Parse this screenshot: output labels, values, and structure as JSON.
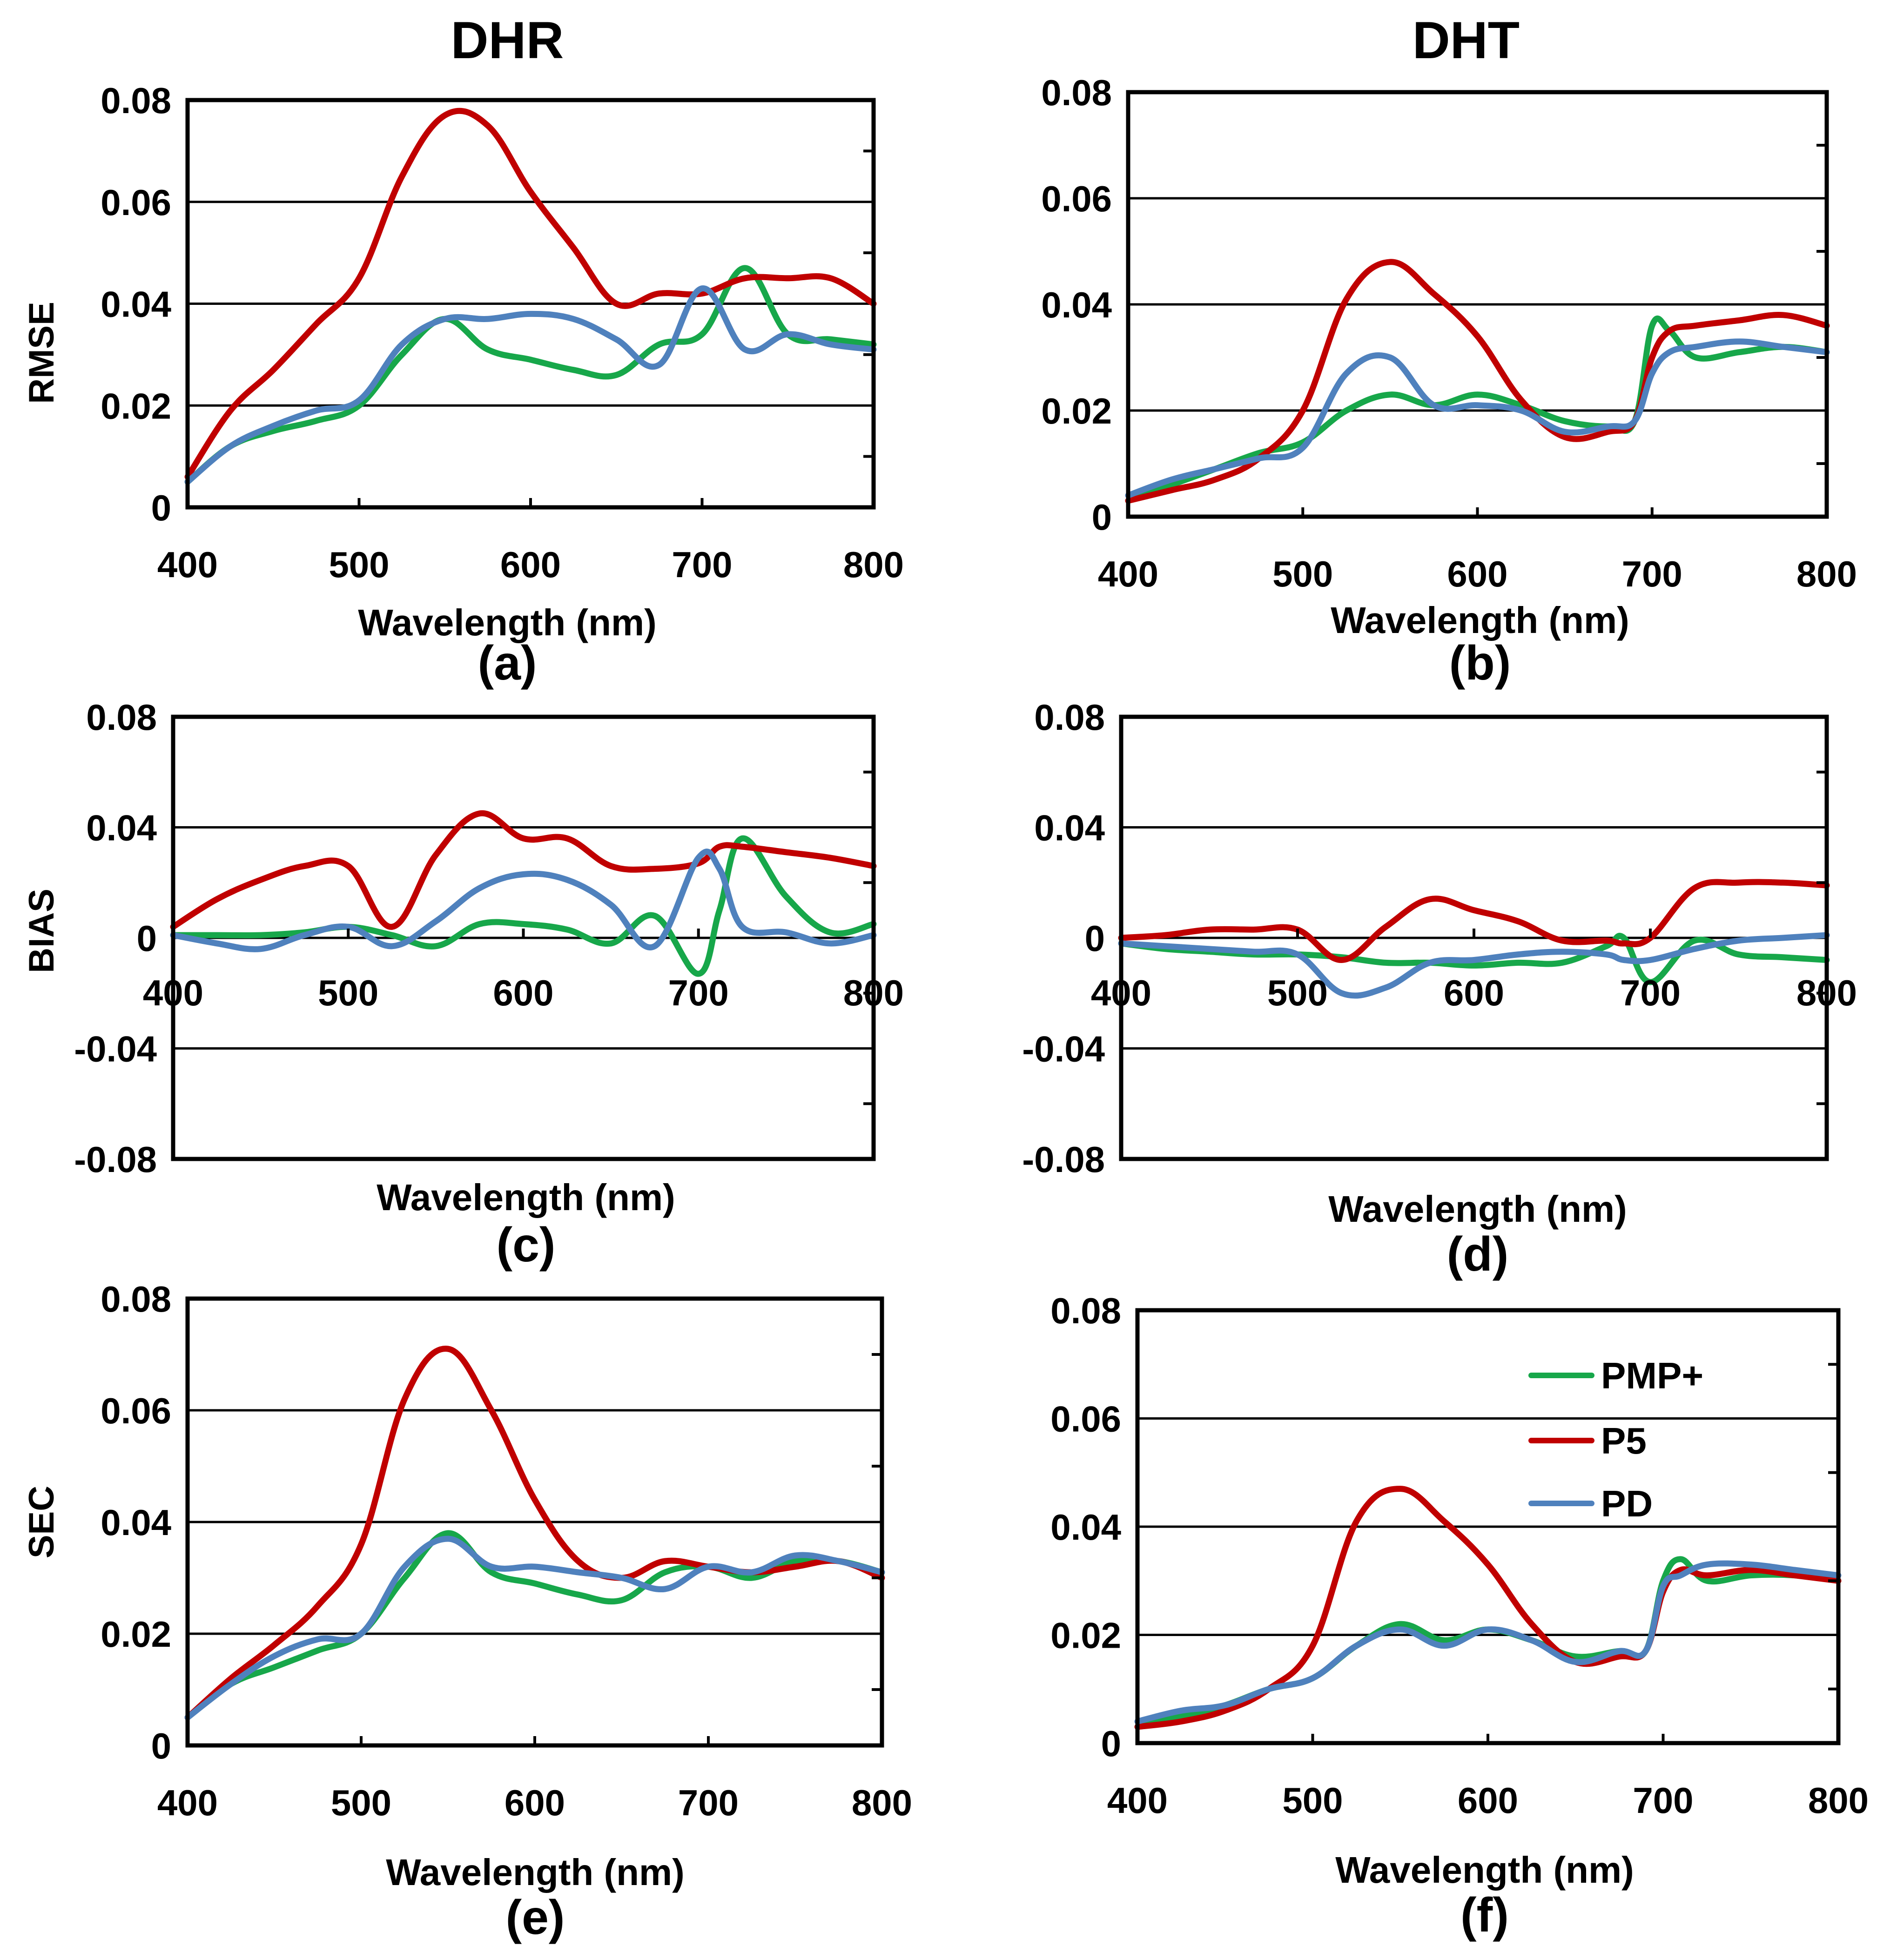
{
  "figure": {
    "column_titles": [
      "DHR",
      "DHT"
    ]
  },
  "legend": {
    "entries": [
      {
        "label": "PMP+",
        "color": "#17a74a"
      },
      {
        "label": "P5",
        "color": "#c00000"
      },
      {
        "label": "PD",
        "color": "#4f81bd"
      }
    ]
  },
  "chart_data": [
    {
      "type": "line",
      "panel": "(a)",
      "title": "DHR",
      "xlabel": "Wavelength (nm)",
      "ylabel": "RMSE",
      "xlim": [
        400,
        800
      ],
      "ylim": [
        0,
        0.08
      ],
      "xticks": [
        "400",
        "500",
        "600",
        "700",
        "800"
      ],
      "yticks": [
        "0",
        "0.02",
        "0.04",
        "0.06",
        "0.08"
      ],
      "x": [
        400,
        425,
        450,
        475,
        500,
        525,
        550,
        575,
        600,
        625,
        650,
        675,
        700,
        725,
        750,
        775,
        800
      ],
      "series": [
        {
          "name": "PMP+",
          "color": "#17a74a",
          "values": [
            0.005,
            0.012,
            0.015,
            0.017,
            0.02,
            0.03,
            0.037,
            0.031,
            0.029,
            0.027,
            0.026,
            0.032,
            0.034,
            0.047,
            0.034,
            0.033,
            0.032
          ]
        },
        {
          "name": "P5",
          "color": "#c00000",
          "values": [
            0.006,
            0.019,
            0.027,
            0.036,
            0.045,
            0.065,
            0.077,
            0.075,
            0.062,
            0.051,
            0.04,
            0.042,
            0.042,
            0.045,
            0.045,
            0.045,
            0.04
          ]
        },
        {
          "name": "PD",
          "color": "#4f81bd",
          "values": [
            0.005,
            0.012,
            0.016,
            0.019,
            0.021,
            0.032,
            0.037,
            0.037,
            0.038,
            0.037,
            0.033,
            0.028,
            0.043,
            0.031,
            0.034,
            0.032,
            0.031
          ]
        }
      ]
    },
    {
      "type": "line",
      "panel": "(b)",
      "title": "DHT",
      "xlabel": "Wavelength (nm)",
      "ylabel": "",
      "xlim": [
        400,
        800
      ],
      "ylim": [
        0,
        0.08
      ],
      "xticks": [
        "400",
        "500",
        "600",
        "700",
        "800"
      ],
      "yticks": [
        "0",
        "0.02",
        "0.04",
        "0.06",
        "0.08"
      ],
      "x": [
        400,
        425,
        450,
        475,
        500,
        525,
        550,
        575,
        600,
        625,
        650,
        675,
        690,
        700,
        710,
        725,
        750,
        775,
        800
      ],
      "series": [
        {
          "name": "PMP+",
          "color": "#17a74a",
          "values": [
            0.003,
            0.006,
            0.009,
            0.012,
            0.014,
            0.02,
            0.023,
            0.021,
            0.023,
            0.021,
            0.018,
            0.017,
            0.018,
            0.036,
            0.035,
            0.03,
            0.031,
            0.032,
            0.031
          ]
        },
        {
          "name": "P5",
          "color": "#c00000",
          "values": [
            0.003,
            0.005,
            0.007,
            0.011,
            0.02,
            0.041,
            0.048,
            0.042,
            0.034,
            0.022,
            0.015,
            0.016,
            0.018,
            0.03,
            0.035,
            0.036,
            0.037,
            0.038,
            0.036
          ]
        },
        {
          "name": "PD",
          "color": "#4f81bd",
          "values": [
            0.004,
            0.007,
            0.009,
            0.011,
            0.013,
            0.027,
            0.03,
            0.021,
            0.021,
            0.02,
            0.016,
            0.017,
            0.018,
            0.027,
            0.031,
            0.032,
            0.033,
            0.032,
            0.031
          ]
        }
      ]
    },
    {
      "type": "line",
      "panel": "(c)",
      "title": "",
      "xlabel": "Wavelength (nm)",
      "ylabel": "BIAS",
      "xlim": [
        400,
        800
      ],
      "ylim": [
        -0.08,
        0.08
      ],
      "xticks": [
        "400",
        "500",
        "600",
        "700",
        "800"
      ],
      "yticks": [
        "-0.08",
        "-0.04",
        "0",
        "0.04",
        "0.08"
      ],
      "x": [
        400,
        425,
        450,
        475,
        500,
        525,
        550,
        575,
        600,
        625,
        650,
        675,
        700,
        712,
        725,
        750,
        775,
        800
      ],
      "series": [
        {
          "name": "PMP+",
          "color": "#17a74a",
          "values": [
            0.001,
            0.001,
            0.001,
            0.002,
            0.004,
            0.001,
            -0.003,
            0.005,
            0.005,
            0.003,
            -0.002,
            0.008,
            -0.013,
            0.01,
            0.036,
            0.015,
            0.002,
            0.005
          ]
        },
        {
          "name": "P5",
          "color": "#c00000",
          "values": [
            0.004,
            0.014,
            0.021,
            0.026,
            0.026,
            0.004,
            0.03,
            0.045,
            0.036,
            0.036,
            0.026,
            0.025,
            0.027,
            0.033,
            0.033,
            0.031,
            0.029,
            0.026
          ]
        },
        {
          "name": "PD",
          "color": "#4f81bd",
          "values": [
            0.001,
            -0.002,
            -0.004,
            0.001,
            0.004,
            -0.003,
            0.006,
            0.018,
            0.023,
            0.021,
            0.012,
            -0.003,
            0.029,
            0.025,
            0.004,
            0.002,
            -0.002,
            0.001
          ]
        }
      ]
    },
    {
      "type": "line",
      "panel": "(d)",
      "title": "",
      "xlabel": "Wavelength (nm)",
      "ylabel": "",
      "xlim": [
        400,
        800
      ],
      "ylim": [
        -0.08,
        0.08
      ],
      "xticks": [
        "400",
        "500",
        "600",
        "700",
        "800"
      ],
      "yticks": [
        "-0.08",
        "-0.04",
        "0",
        "0.04",
        "0.08"
      ],
      "x": [
        400,
        425,
        450,
        475,
        500,
        525,
        550,
        575,
        600,
        625,
        650,
        675,
        685,
        700,
        725,
        750,
        775,
        800
      ],
      "series": [
        {
          "name": "PMP+",
          "color": "#17a74a",
          "values": [
            -0.002,
            -0.004,
            -0.005,
            -0.006,
            -0.006,
            -0.007,
            -0.009,
            -0.009,
            -0.01,
            -0.009,
            -0.009,
            -0.003,
            0.0,
            -0.016,
            -0.001,
            -0.006,
            -0.007,
            -0.008
          ]
        },
        {
          "name": "P5",
          "color": "#c00000",
          "values": [
            0.0,
            0.001,
            0.003,
            0.003,
            0.003,
            -0.008,
            0.004,
            0.014,
            0.01,
            0.006,
            -0.001,
            -0.001,
            -0.002,
            0.0,
            0.018,
            0.02,
            0.02,
            0.019
          ]
        },
        {
          "name": "PD",
          "color": "#4f81bd",
          "values": [
            -0.002,
            -0.003,
            -0.004,
            -0.005,
            -0.006,
            -0.02,
            -0.018,
            -0.009,
            -0.008,
            -0.006,
            -0.005,
            -0.006,
            -0.008,
            -0.008,
            -0.004,
            -0.001,
            0.0,
            0.001
          ]
        }
      ]
    },
    {
      "type": "line",
      "panel": "(e)",
      "title": "",
      "xlabel": "Wavelength  (nm)",
      "ylabel": "SEC",
      "xlim": [
        400,
        800
      ],
      "ylim": [
        0,
        0.08
      ],
      "xticks": [
        "400",
        "500",
        "600",
        "700",
        "800"
      ],
      "yticks": [
        "0",
        "0.02",
        "0.04",
        "0.06",
        "0.08"
      ],
      "x": [
        400,
        425,
        450,
        475,
        500,
        525,
        550,
        575,
        600,
        625,
        650,
        675,
        700,
        725,
        750,
        775,
        800
      ],
      "series": [
        {
          "name": "PMP+",
          "color": "#17a74a",
          "values": [
            0.005,
            0.011,
            0.014,
            0.017,
            0.02,
            0.03,
            0.038,
            0.031,
            0.029,
            0.027,
            0.026,
            0.031,
            0.032,
            0.03,
            0.033,
            0.033,
            0.031
          ]
        },
        {
          "name": "P5",
          "color": "#c00000",
          "values": [
            0.005,
            0.012,
            0.018,
            0.025,
            0.036,
            0.062,
            0.071,
            0.06,
            0.044,
            0.033,
            0.03,
            0.033,
            0.032,
            0.031,
            0.032,
            0.033,
            0.03
          ]
        },
        {
          "name": "PD",
          "color": "#4f81bd",
          "values": [
            0.005,
            0.011,
            0.016,
            0.019,
            0.02,
            0.032,
            0.037,
            0.032,
            0.032,
            0.031,
            0.03,
            0.028,
            0.032,
            0.031,
            0.034,
            0.033,
            0.031
          ]
        }
      ]
    },
    {
      "type": "line",
      "panel": "(f)",
      "title": "",
      "xlabel": "Wavelength  (nm)",
      "ylabel": "",
      "xlim": [
        400,
        800
      ],
      "ylim": [
        0,
        0.08
      ],
      "xticks": [
        "400",
        "500",
        "600",
        "700",
        "800"
      ],
      "yticks": [
        "0",
        "0.02",
        "0.04",
        "0.06",
        "0.08"
      ],
      "x": [
        400,
        425,
        450,
        475,
        500,
        525,
        550,
        575,
        600,
        625,
        650,
        675,
        690,
        700,
        710,
        725,
        750,
        775,
        800
      ],
      "series": [
        {
          "name": "PMP+",
          "color": "#17a74a",
          "values": [
            0.003,
            0.005,
            0.007,
            0.01,
            0.012,
            0.018,
            0.022,
            0.019,
            0.021,
            0.019,
            0.016,
            0.017,
            0.017,
            0.03,
            0.034,
            0.03,
            0.031,
            0.031,
            0.03
          ]
        },
        {
          "name": "P5",
          "color": "#c00000",
          "values": [
            0.003,
            0.004,
            0.006,
            0.01,
            0.018,
            0.041,
            0.047,
            0.041,
            0.033,
            0.022,
            0.015,
            0.016,
            0.017,
            0.028,
            0.032,
            0.031,
            0.032,
            0.031,
            0.03
          ]
        },
        {
          "name": "PD",
          "color": "#4f81bd",
          "values": [
            0.004,
            0.006,
            0.007,
            0.01,
            0.012,
            0.018,
            0.021,
            0.018,
            0.021,
            0.019,
            0.015,
            0.017,
            0.017,
            0.029,
            0.031,
            0.033,
            0.033,
            0.032,
            0.031
          ]
        }
      ]
    }
  ]
}
